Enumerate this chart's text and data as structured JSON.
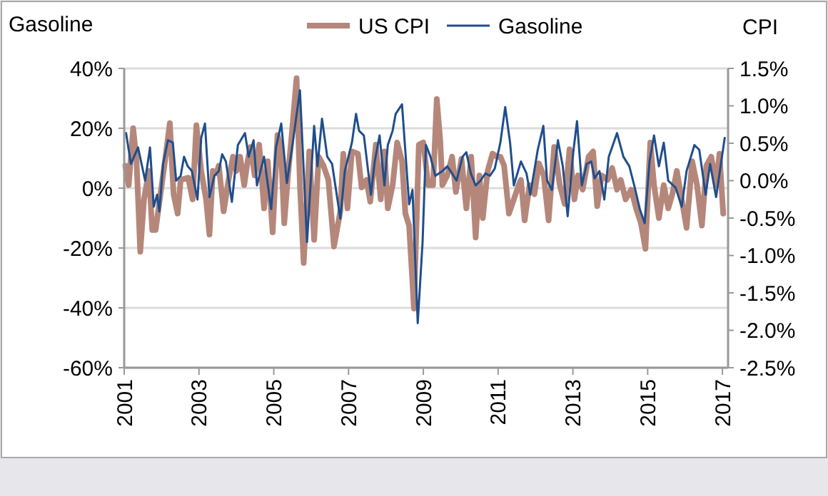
{
  "chart_data": {
    "type": "line",
    "ylabel": "Gasoline",
    "y2label": "CPI",
    "legend": "top",
    "grid": "y",
    "line_style": "solid",
    "marker": "none",
    "xlim": [
      2001,
      2017.15
    ],
    "xticks": [
      2001,
      2003,
      2005,
      2007,
      2009,
      2011,
      2013,
      2015,
      2017
    ],
    "ylim": [
      -60,
      40
    ],
    "yticks": [
      {
        "value": -60,
        "label": "-60%"
      },
      {
        "value": -40,
        "label": "-40%"
      },
      {
        "value": -20,
        "label": "-20%"
      },
      {
        "value": 0,
        "label": "0%"
      },
      {
        "value": 20,
        "label": "20%"
      },
      {
        "value": 40,
        "label": "40%"
      }
    ],
    "y2lim": [
      -2.5,
      1.5
    ],
    "y2ticks": [
      {
        "value": -2.5,
        "label": "-2.5%"
      },
      {
        "value": -2,
        "label": "-2.0%"
      },
      {
        "value": -1.5,
        "label": "-1.5%"
      },
      {
        "value": -1,
        "label": "-1.0%"
      },
      {
        "value": -0.5,
        "label": "-0.5%"
      },
      {
        "value": 0,
        "label": "0.0%"
      },
      {
        "value": 0.5,
        "label": "0.5%"
      },
      {
        "value": 1,
        "label": "1.0%"
      },
      {
        "value": 1.5,
        "label": "1.5%"
      }
    ],
    "series": [
      {
        "name": "US CPI",
        "color": "#b5877a",
        "axis": "y2",
        "x": [
          2001.03,
          2001.12,
          2001.24,
          2001.33,
          2001.43,
          2001.53,
          2001.66,
          2001.75,
          2001.84,
          2001.97,
          2002.09,
          2002.22,
          2002.32,
          2002.43,
          2002.51,
          2002.71,
          2002.83,
          2002.93,
          2003.06,
          2003.19,
          2003.28,
          2003.37,
          2003.47,
          2003.53,
          2003.66,
          2003.79,
          2003.91,
          2004.0,
          2004.1,
          2004.21,
          2004.3,
          2004.38,
          2004.49,
          2004.61,
          2004.74,
          2004.84,
          2004.97,
          2005.1,
          2005.19,
          2005.28,
          2005.38,
          2005.48,
          2005.61,
          2005.7,
          2005.8,
          2005.95,
          2006.08,
          2006.2,
          2006.33,
          2006.46,
          2006.61,
          2006.78,
          2006.86,
          2006.97,
          2007.09,
          2007.25,
          2007.35,
          2007.48,
          2007.58,
          2007.73,
          2007.86,
          2007.96,
          2008.05,
          2008.18,
          2008.3,
          2008.43,
          2008.52,
          2008.62,
          2008.75,
          2008.88,
          2009.0,
          2009.13,
          2009.26,
          2009.36,
          2009.45,
          2009.51,
          2009.64,
          2009.77,
          2009.87,
          2010.02,
          2010.15,
          2010.28,
          2010.4,
          2010.5,
          2010.59,
          2010.72,
          2010.85,
          2010.97,
          2011.06,
          2011.16,
          2011.29,
          2011.42,
          2011.55,
          2011.61,
          2011.71,
          2011.84,
          2011.97,
          2012.09,
          2012.22,
          2012.35,
          2012.5,
          2012.65,
          2012.78,
          2012.91,
          2013.04,
          2013.14,
          2013.26,
          2013.42,
          2013.54,
          2013.65,
          2013.77,
          2013.93,
          2014.05,
          2014.18,
          2014.28,
          2014.41,
          2014.56,
          2014.69,
          2014.82,
          2014.94,
          2015.07,
          2015.17,
          2015.3,
          2015.43,
          2015.55,
          2015.66,
          2015.78,
          2015.91,
          2016.04,
          2016.19,
          2016.32,
          2016.45,
          2016.57,
          2016.7,
          2016.83,
          2016.92,
          2017.02
        ],
        "values": [
          0.2,
          -0.06,
          0.7,
          0.26,
          -0.95,
          -0.25,
          0.13,
          -0.66,
          -0.66,
          -0.18,
          0.26,
          0.77,
          -0.18,
          -0.44,
          0.01,
          0.04,
          -0.25,
          0.74,
          0.13,
          -0.25,
          -0.72,
          0.13,
          0.1,
          0.2,
          -0.41,
          0.01,
          0.32,
          0.13,
          0.32,
          -0.06,
          0.26,
          0.45,
          0.07,
          0.48,
          -0.37,
          0.26,
          -0.69,
          0.61,
          0.45,
          -0.57,
          0.07,
          0.61,
          1.37,
          -0.06,
          -1.1,
          0.39,
          -0.79,
          0.32,
          0.2,
          0.01,
          -0.88,
          -0.41,
          0.36,
          -0.37,
          0.39,
          0.36,
          -0.09,
          0.01,
          -0.28,
          0.48,
          -0.25,
          0.39,
          -0.37,
          -0.06,
          0.51,
          0.26,
          -0.44,
          -0.6,
          -1.71,
          0.48,
          0.51,
          -0.06,
          -0.06,
          1.09,
          0.55,
          -0.06,
          0.07,
          0.32,
          -0.15,
          0.29,
          -0.37,
          0.32,
          -0.76,
          0.07,
          -0.5,
          0.13,
          0.36,
          0.32,
          0.32,
          0.2,
          -0.44,
          -0.25,
          -0.06,
          0.01,
          -0.53,
          -0.06,
          -0.18,
          0.23,
          0.07,
          -0.53,
          0.45,
          -0.06,
          -0.31,
          0.42,
          -0.25,
          0.07,
          -0.12,
          0.32,
          0.39,
          -0.34,
          0.07,
          0.01,
          0.17,
          -0.12,
          0.01,
          -0.25,
          -0.12,
          -0.37,
          -0.57,
          -0.91,
          0.51,
          -0.06,
          -0.5,
          -0.06,
          -0.37,
          -0.18,
          0.13,
          -0.25,
          -0.63,
          0.26,
          -0.06,
          -0.6,
          0.2,
          0.32,
          -0.06,
          0.36,
          -0.44
        ]
      },
      {
        "name": "Gasoline",
        "color": "#1f4e8c",
        "axis": "y",
        "x": [
          2001.05,
          2001.18,
          2001.37,
          2001.56,
          2001.69,
          2001.79,
          2001.88,
          2001.94,
          2002.04,
          2002.17,
          2002.3,
          2002.39,
          2002.51,
          2002.6,
          2002.7,
          2002.81,
          2002.96,
          2003.06,
          2003.16,
          2003.28,
          2003.41,
          2003.53,
          2003.62,
          2003.72,
          2003.88,
          2004.04,
          2004.23,
          2004.33,
          2004.46,
          2004.55,
          2004.74,
          2004.93,
          2005.06,
          2005.2,
          2005.35,
          2005.5,
          2005.7,
          2005.89,
          2006.08,
          2006.17,
          2006.29,
          2006.43,
          2006.56,
          2006.78,
          2006.9,
          2007.09,
          2007.2,
          2007.28,
          2007.41,
          2007.6,
          2007.7,
          2007.83,
          2007.96,
          2008.05,
          2008.18,
          2008.26,
          2008.43,
          2008.62,
          2008.71,
          2008.85,
          2008.98,
          2009.07,
          2009.19,
          2009.32,
          2009.51,
          2009.64,
          2009.77,
          2009.89,
          2010.05,
          2010.15,
          2010.27,
          2010.4,
          2010.53,
          2010.66,
          2010.78,
          2010.91,
          2011.06,
          2011.19,
          2011.32,
          2011.42,
          2011.61,
          2011.76,
          2011.86,
          2012.06,
          2012.21,
          2012.31,
          2012.44,
          2012.6,
          2012.73,
          2012.86,
          2013.01,
          2013.11,
          2013.24,
          2013.37,
          2013.49,
          2013.58,
          2013.71,
          2013.84,
          2013.96,
          2014.18,
          2014.35,
          2014.51,
          2014.64,
          2014.79,
          2014.92,
          2015.05,
          2015.17,
          2015.3,
          2015.43,
          2015.55,
          2015.75,
          2015.91,
          2016.04,
          2016.25,
          2016.38,
          2016.55,
          2016.67,
          2016.83,
          2016.95,
          2017.06
        ],
        "values": [
          18.4,
          8.1,
          13.6,
          2.5,
          13.6,
          -6.2,
          -2.2,
          -7.8,
          8.1,
          16,
          15.2,
          2.5,
          4.1,
          10.5,
          7.3,
          5.7,
          -3.8,
          16.8,
          21.6,
          -3,
          4.1,
          5.7,
          11.3,
          8.9,
          -4.6,
          14.4,
          18.4,
          10.5,
          16,
          0.9,
          10.5,
          -7,
          13.6,
          21.6,
          1.7,
          14.4,
          32.7,
          -18,
          20.8,
          7.3,
          23.2,
          10.5,
          8.1,
          -10.2,
          5.7,
          15.2,
          24.8,
          19.2,
          17.6,
          -2.2,
          8.9,
          17.6,
          0.9,
          14.4,
          19.2,
          24.8,
          28,
          -5.4,
          -0.6,
          -45.1,
          -18,
          14.4,
          10.5,
          4.1,
          5.7,
          7.3,
          4.9,
          2.5,
          10.5,
          12,
          4.9,
          0.9,
          2.5,
          4.9,
          4.1,
          6.5,
          15.2,
          27.1,
          15.2,
          0.9,
          8.9,
          4.9,
          -2.2,
          12.8,
          20.8,
          2.5,
          -0.6,
          16,
          7.3,
          -9.4,
          12,
          22.4,
          0.9,
          8.1,
          8.9,
          3.3,
          5.7,
          -3.8,
          10.5,
          18.4,
          10.5,
          7.3,
          0.9,
          -7,
          -11.7,
          8.9,
          17.6,
          7.3,
          15.2,
          2.5,
          0.1,
          -6.2,
          5.7,
          14.4,
          12.8,
          -2.2,
          8.1,
          -3,
          7.3,
          16.8
        ]
      }
    ]
  }
}
